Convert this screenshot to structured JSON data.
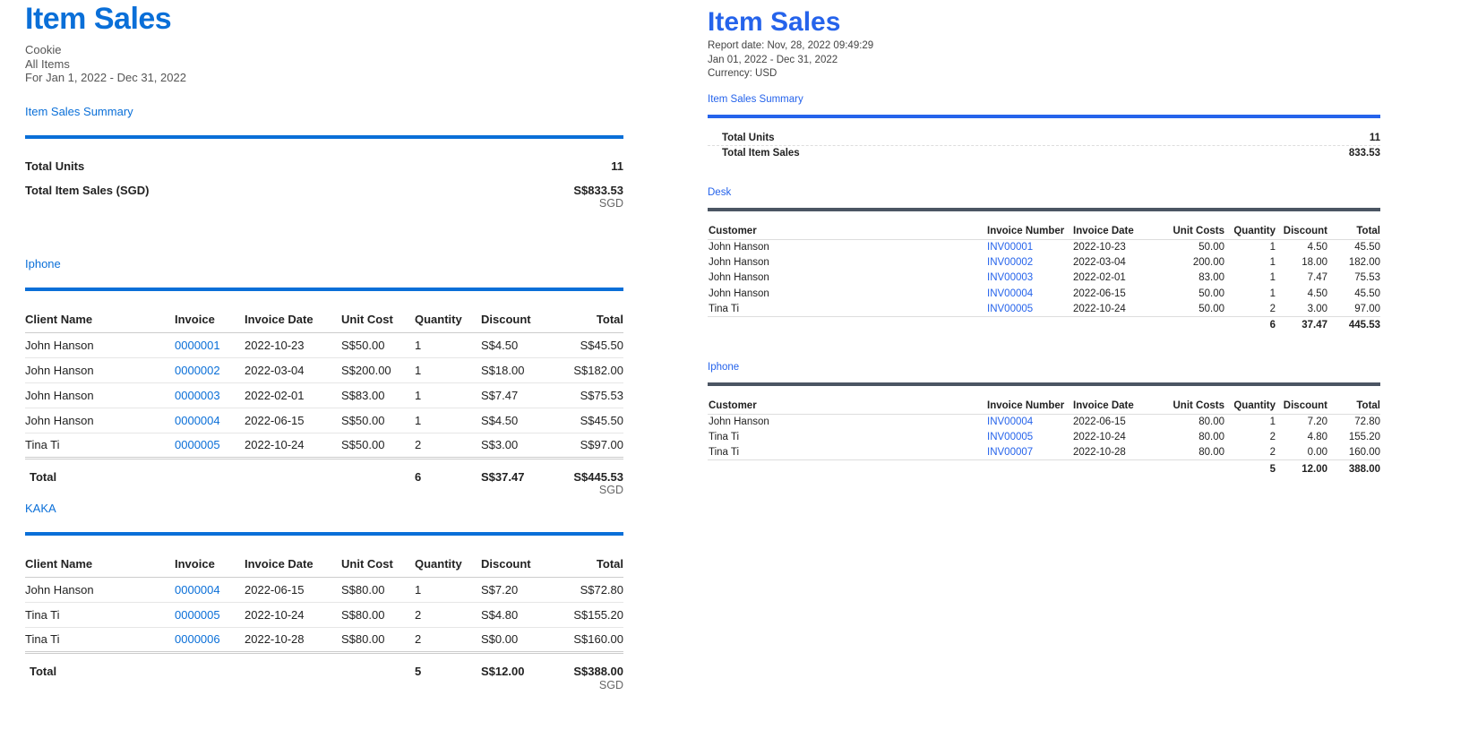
{
  "left": {
    "title": "Item Sales",
    "subtitle": [
      "Cookie",
      "All Items",
      "For Jan 1, 2022 - Dec 31, 2022"
    ],
    "summary_link": "Item Sales Summary",
    "summary": {
      "units_label": "Total Units",
      "units": "11",
      "sales_label": "Total Item Sales (SGD)",
      "sales": "S$833.53",
      "currency": "SGD"
    },
    "columns": [
      "Client Name",
      "Invoice",
      "Invoice Date",
      "Unit Cost",
      "Quantity",
      "Discount",
      "Total"
    ],
    "sections": [
      {
        "name": "Iphone",
        "rows": [
          [
            "John Hanson",
            "0000001",
            "2022-10-23",
            "S$50.00",
            "1",
            "S$4.50",
            "S$45.50"
          ],
          [
            "John Hanson",
            "0000002",
            "2022-03-04",
            "S$200.00",
            "1",
            "S$18.00",
            "S$182.00"
          ],
          [
            "John Hanson",
            "0000003",
            "2022-02-01",
            "S$83.00",
            "1",
            "S$7.47",
            "S$75.53"
          ],
          [
            "John Hanson",
            "0000004",
            "2022-06-15",
            "S$50.00",
            "1",
            "S$4.50",
            "S$45.50"
          ],
          [
            "Tina Ti",
            "0000005",
            "2022-10-24",
            "S$50.00",
            "2",
            "S$3.00",
            "S$97.00"
          ]
        ],
        "total_label": "Total",
        "total_qty": "6",
        "total_discount": "S$37.47",
        "total": "S$445.53",
        "currency": "SGD"
      },
      {
        "name": "KAKA",
        "rows": [
          [
            "John Hanson",
            "0000004",
            "2022-06-15",
            "S$80.00",
            "1",
            "S$7.20",
            "S$72.80"
          ],
          [
            "Tina Ti",
            "0000005",
            "2022-10-24",
            "S$80.00",
            "2",
            "S$4.80",
            "S$155.20"
          ],
          [
            "Tina Ti",
            "0000006",
            "2022-10-28",
            "S$80.00",
            "2",
            "S$0.00",
            "S$160.00"
          ]
        ],
        "total_label": "Total",
        "total_qty": "5",
        "total_discount": "S$12.00",
        "total": "S$388.00",
        "currency": "SGD"
      }
    ]
  },
  "right": {
    "title": "Item Sales",
    "subtitle": [
      "Report date: Nov, 28, 2022 09:49:29",
      "Jan 01, 2022 - Dec 31, 2022",
      "Currency: USD"
    ],
    "summary_link": "Item Sales Summary",
    "summary": {
      "units_label": "Total Units",
      "units": "11",
      "sales_label": "Total Item Sales",
      "sales": "833.53"
    },
    "columns": [
      "Customer",
      "Invoice Number",
      "Invoice Date",
      "Unit Costs",
      "Quantity",
      "Discount",
      "Total"
    ],
    "sections": [
      {
        "name": "Desk",
        "rows": [
          [
            "John Hanson",
            "INV00001",
            "2022-10-23",
            "50.00",
            "1",
            "4.50",
            "45.50"
          ],
          [
            "John Hanson",
            "INV00002",
            "2022-03-04",
            "200.00",
            "1",
            "18.00",
            "182.00"
          ],
          [
            "John Hanson",
            "INV00003",
            "2022-02-01",
            "83.00",
            "1",
            "7.47",
            "75.53"
          ],
          [
            "John Hanson",
            "INV00004",
            "2022-06-15",
            "50.00",
            "1",
            "4.50",
            "45.50"
          ],
          [
            "Tina Ti",
            "INV00005",
            "2022-10-24",
            "50.00",
            "2",
            "3.00",
            "97.00"
          ]
        ],
        "total_qty": "6",
        "total_discount": "37.47",
        "total": "445.53"
      },
      {
        "name": "Iphone",
        "rows": [
          [
            "John Hanson",
            "INV00004",
            "2022-06-15",
            "80.00",
            "1",
            "7.20",
            "72.80"
          ],
          [
            "Tina Ti",
            "INV00005",
            "2022-10-24",
            "80.00",
            "2",
            "4.80",
            "155.20"
          ],
          [
            "Tina Ti",
            "INV00007",
            "2022-10-28",
            "80.00",
            "2",
            "0.00",
            "160.00"
          ]
        ],
        "total_qty": "5",
        "total_discount": "12.00",
        "total": "388.00"
      }
    ],
    "colors": {
      "accent": "#2563eb",
      "section_bar": "#4b5563"
    }
  }
}
